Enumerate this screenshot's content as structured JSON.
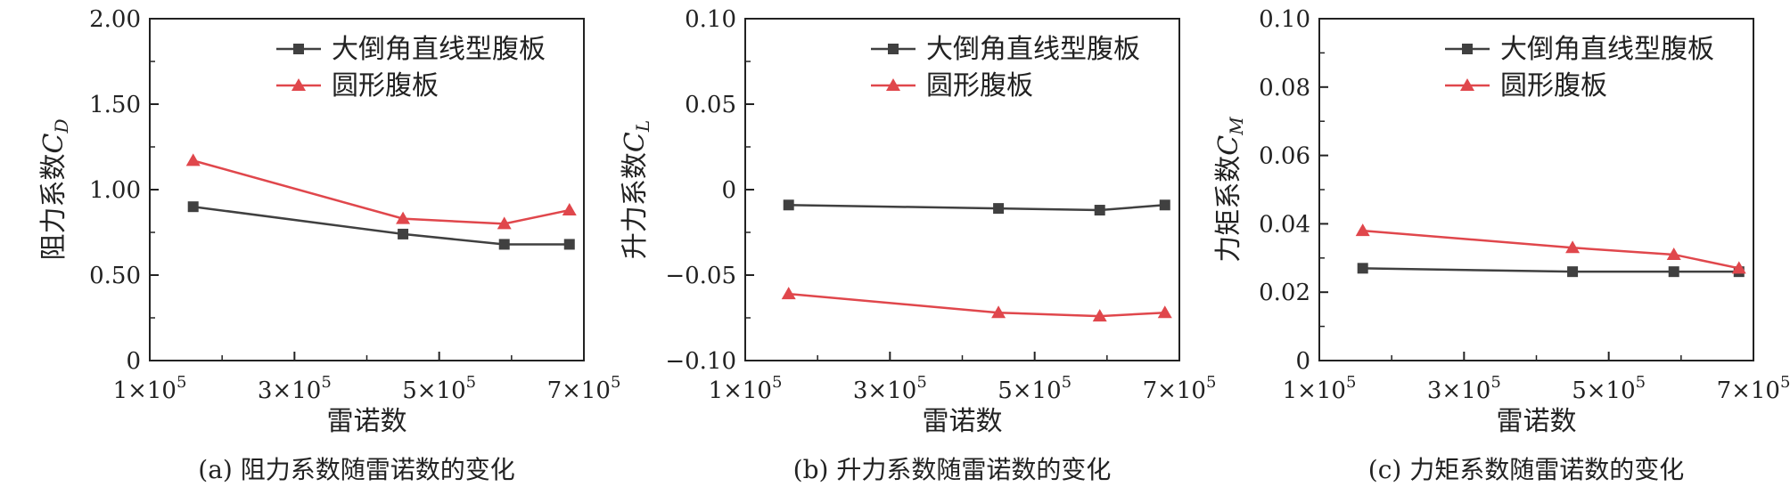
{
  "chart_data": [
    {
      "type": "line",
      "caption": "(a) 阻力系数随雷诺数的变化",
      "xlabel": "雷诺数",
      "ylabel_main": "阻力系数",
      "ylabel_symbol": "C",
      "ylabel_sub": "D",
      "xlim": [
        100000,
        700000
      ],
      "ylim": [
        0,
        2.0
      ],
      "xticks": [
        100000,
        300000,
        500000,
        700000
      ],
      "xtick_labels": [
        {
          "base": "1×10",
          "exp": "5"
        },
        {
          "base": "3×10",
          "exp": "5"
        },
        {
          "base": "5×10",
          "exp": "5"
        },
        {
          "base": "7×10",
          "exp": "5"
        }
      ],
      "yticks": [
        0,
        0.5,
        1.0,
        1.5,
        2.0
      ],
      "ytick_labels": [
        "0",
        "0.50",
        "1.00",
        "1.50",
        "2.00"
      ],
      "legend_position": "top-right",
      "series": [
        {
          "name": "大倒角直线型腹板",
          "color": "#404040",
          "marker": "square",
          "x": [
            160000,
            450000,
            590000,
            680000
          ],
          "y": [
            0.9,
            0.74,
            0.68,
            0.68
          ]
        },
        {
          "name": "圆形腹板",
          "color": "#e0474c",
          "marker": "triangle",
          "x": [
            160000,
            450000,
            590000,
            680000
          ],
          "y": [
            1.17,
            0.83,
            0.8,
            0.88
          ]
        }
      ]
    },
    {
      "type": "line",
      "caption": "(b) 升力系数随雷诺数的变化",
      "xlabel": "雷诺数",
      "ylabel_main": "升力系数",
      "ylabel_symbol": "C",
      "ylabel_sub": "L",
      "xlim": [
        100000,
        700000
      ],
      "ylim": [
        -0.1,
        0.1
      ],
      "xticks": [
        100000,
        300000,
        500000,
        700000
      ],
      "xtick_labels": [
        {
          "base": "1×10",
          "exp": "5"
        },
        {
          "base": "3×10",
          "exp": "5"
        },
        {
          "base": "5×10",
          "exp": "5"
        },
        {
          "base": "7×10",
          "exp": "5"
        }
      ],
      "yticks": [
        -0.1,
        -0.05,
        0,
        0.05,
        0.1
      ],
      "ytick_labels": [
        "−0.10",
        "−0.05",
        "0",
        "0.05",
        "0.10"
      ],
      "legend_position": "top-right",
      "series": [
        {
          "name": "大倒角直线型腹板",
          "color": "#404040",
          "marker": "square",
          "x": [
            160000,
            450000,
            590000,
            680000
          ],
          "y": [
            -0.009,
            -0.011,
            -0.012,
            -0.009
          ]
        },
        {
          "name": "圆形腹板",
          "color": "#e0474c",
          "marker": "triangle",
          "x": [
            160000,
            450000,
            590000,
            680000
          ],
          "y": [
            -0.061,
            -0.072,
            -0.074,
            -0.072
          ]
        }
      ]
    },
    {
      "type": "line",
      "caption": "(c) 力矩系数随雷诺数的变化",
      "xlabel": "雷诺数",
      "ylabel_main": "力矩系数",
      "ylabel_symbol": "C",
      "ylabel_sub": "M",
      "xlim": [
        100000,
        700000
      ],
      "ylim": [
        0,
        0.1
      ],
      "xticks": [
        100000,
        300000,
        500000,
        700000
      ],
      "xtick_labels": [
        {
          "base": "1×10",
          "exp": "5"
        },
        {
          "base": "3×10",
          "exp": "5"
        },
        {
          "base": "5×10",
          "exp": "5"
        },
        {
          "base": "7×10",
          "exp": "5"
        }
      ],
      "yticks": [
        0,
        0.02,
        0.04,
        0.06,
        0.08,
        0.1
      ],
      "ytick_labels": [
        "0",
        "0.02",
        "0.04",
        "0.06",
        "0.08",
        "0.10"
      ],
      "legend_position": "top-right",
      "series": [
        {
          "name": "大倒角直线型腹板",
          "color": "#404040",
          "marker": "square",
          "x": [
            160000,
            450000,
            590000,
            680000
          ],
          "y": [
            0.027,
            0.026,
            0.026,
            0.026
          ]
        },
        {
          "name": "圆形腹板",
          "color": "#e0474c",
          "marker": "triangle",
          "x": [
            160000,
            450000,
            590000,
            680000
          ],
          "y": [
            0.038,
            0.033,
            0.031,
            0.027
          ]
        }
      ]
    }
  ]
}
